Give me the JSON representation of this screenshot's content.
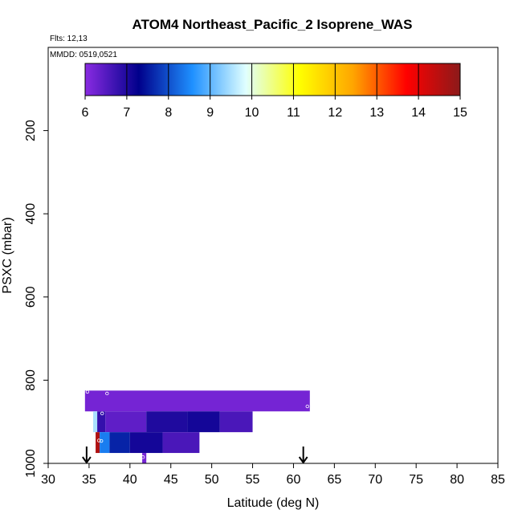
{
  "chart_data": {
    "type": "heatmap",
    "title": "ATOM4 Northeast_Pacific_2 Isoprene_WAS",
    "annotations": {
      "flights": "Flts: 12,13",
      "dates": "MMDD: 0519,0521"
    },
    "xlabel": "Latitude (deg N)",
    "ylabel": "PSXC (mbar)",
    "xlim": [
      30,
      85
    ],
    "ylim": [
      1000,
      0
    ],
    "x_ticks": [
      "30",
      "35",
      "40",
      "45",
      "50",
      "55",
      "60",
      "65",
      "70",
      "75",
      "80",
      "85"
    ],
    "y_ticks": [
      "200",
      "400",
      "600",
      "800",
      "1000"
    ],
    "colorbar": {
      "min": 6,
      "max": 15,
      "tick_labels": [
        "6",
        "7",
        "8",
        "9",
        "10",
        "11",
        "12",
        "13",
        "14",
        "15"
      ],
      "colors": [
        "#8a2be2",
        "#00008b",
        "#1e90ff",
        "#e0ffff",
        "#ffff00",
        "#ffa500",
        "#ff0000",
        "#8b1a1a"
      ]
    },
    "cells": [
      {
        "lat0": 34.5,
        "lat1": 62.0,
        "p0": 825,
        "p1": 875,
        "value": 6.2
      },
      {
        "lat0": 35.5,
        "lat1": 36.0,
        "p0": 875,
        "p1": 925,
        "value": 9.5
      },
      {
        "lat0": 36.0,
        "lat1": 37.0,
        "p0": 875,
        "p1": 925,
        "value": 6.8
      },
      {
        "lat0": 37.0,
        "lat1": 42.0,
        "p0": 875,
        "p1": 925,
        "value": 6.4
      },
      {
        "lat0": 42.0,
        "lat1": 47.0,
        "p0": 875,
        "p1": 925,
        "value": 7.0
      },
      {
        "lat0": 47.0,
        "lat1": 51.0,
        "p0": 875,
        "p1": 925,
        "value": 7.1
      },
      {
        "lat0": 51.0,
        "lat1": 55.0,
        "p0": 875,
        "p1": 925,
        "value": 6.6
      },
      {
        "lat0": 35.8,
        "lat1": 36.3,
        "p0": 925,
        "p1": 975,
        "value": 14.6
      },
      {
        "lat0": 36.3,
        "lat1": 37.5,
        "p0": 925,
        "p1": 975,
        "value": 8.4
      },
      {
        "lat0": 37.5,
        "lat1": 40.0,
        "p0": 925,
        "p1": 975,
        "value": 7.6
      },
      {
        "lat0": 40.0,
        "lat1": 44.0,
        "p0": 925,
        "p1": 975,
        "value": 7.1
      },
      {
        "lat0": 44.0,
        "lat1": 48.5,
        "p0": 925,
        "p1": 975,
        "value": 6.6
      },
      {
        "lat0": 41.5,
        "lat1": 42.0,
        "p0": 975,
        "p1": 1000,
        "value": 6.2
      }
    ],
    "sample_points": [
      {
        "lat": 34.8,
        "p": 828
      },
      {
        "lat": 37.2,
        "p": 832
      },
      {
        "lat": 61.7,
        "p": 863
      },
      {
        "lat": 36.6,
        "p": 880
      },
      {
        "lat": 36.2,
        "p": 945
      },
      {
        "lat": 36.5,
        "p": 946
      },
      {
        "lat": 41.6,
        "p": 985
      }
    ],
    "arrows": [
      {
        "lat": 34.7
      },
      {
        "lat": 61.2
      }
    ]
  }
}
